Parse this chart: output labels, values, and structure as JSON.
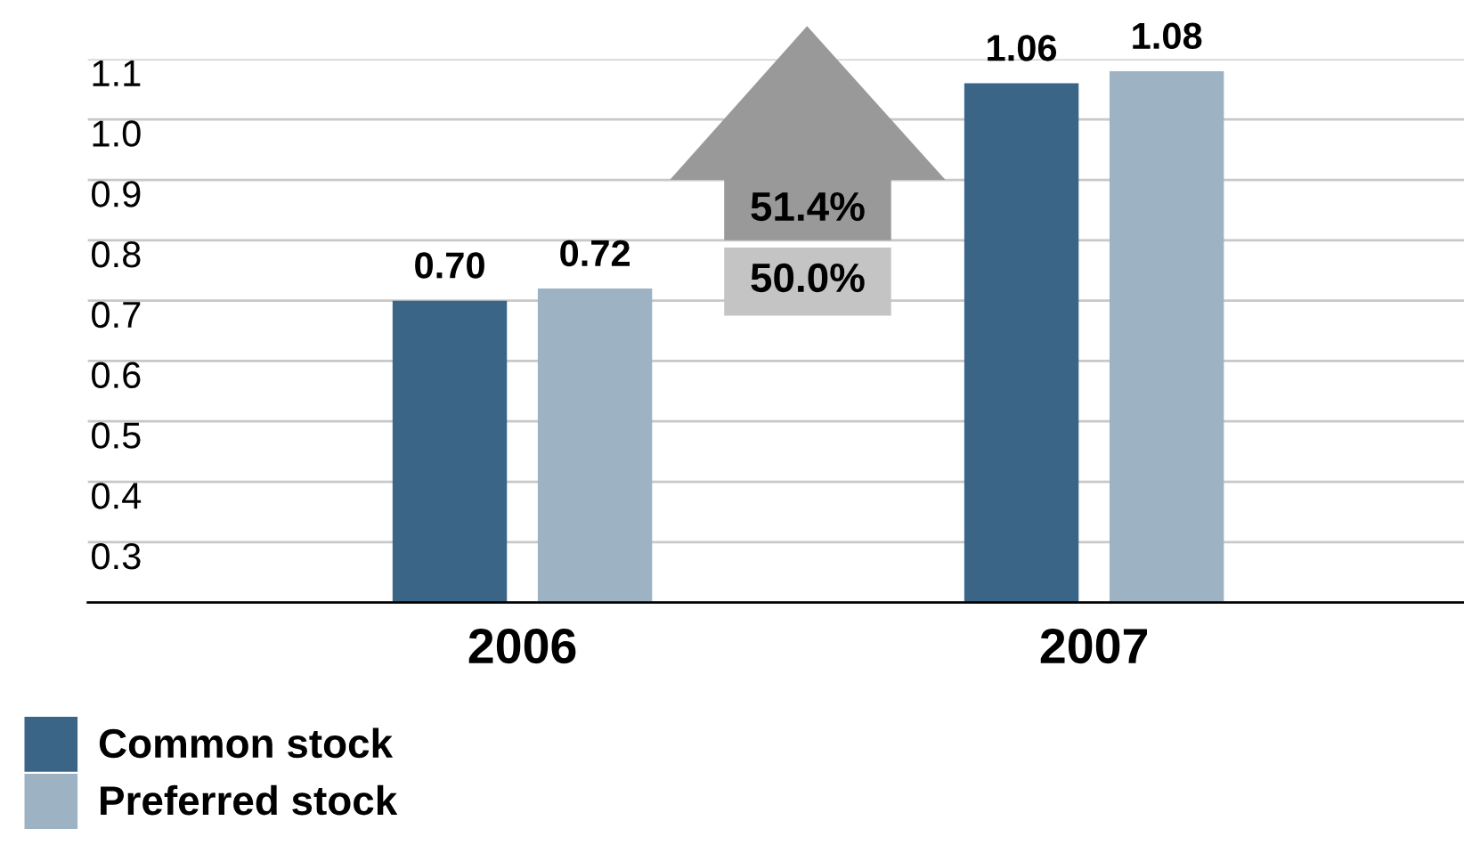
{
  "chart_data": {
    "type": "bar",
    "categories": [
      "2006",
      "2007"
    ],
    "series": [
      {
        "name": "Common stock",
        "color": "#3a6587",
        "values": [
          0.7,
          1.06
        ],
        "value_labels": [
          "0.70",
          "1.06"
        ]
      },
      {
        "name": "Preferred stock",
        "color": "#9db2c3",
        "values": [
          0.72,
          1.08
        ],
        "value_labels": [
          "0.72",
          "1.08"
        ]
      }
    ],
    "ylim": [
      0.2,
      1.1
    ],
    "yticks": [
      {
        "value": 0.2,
        "label": null
      },
      0.3,
      0.4,
      0.5,
      0.6,
      0.7,
      0.8,
      0.9,
      {
        "value": 1.0,
        "label": "1.0"
      },
      1.1
    ],
    "grid": "y",
    "legend": "bottom left",
    "annotations": [
      "51.4%",
      "50.0%"
    ]
  }
}
